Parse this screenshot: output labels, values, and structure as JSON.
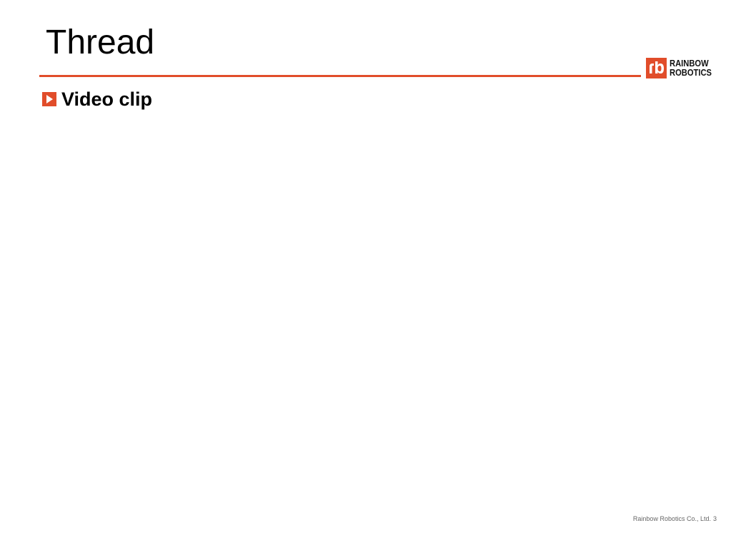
{
  "slide": {
    "title": "Thread",
    "section_label": "Video clip"
  },
  "logo": {
    "mark_text": "rb",
    "line1": "RAINBOW",
    "line2": "ROBOTICS"
  },
  "footer": {
    "company": "Rainbow Robotics Co., Ltd.",
    "page_number": "3"
  },
  "colors": {
    "accent": "#e14d2a",
    "text": "#000000",
    "footer_text": "#666666"
  },
  "icons": {
    "section_marker": "play-icon",
    "logo_mark": "rb-logo-icon"
  }
}
